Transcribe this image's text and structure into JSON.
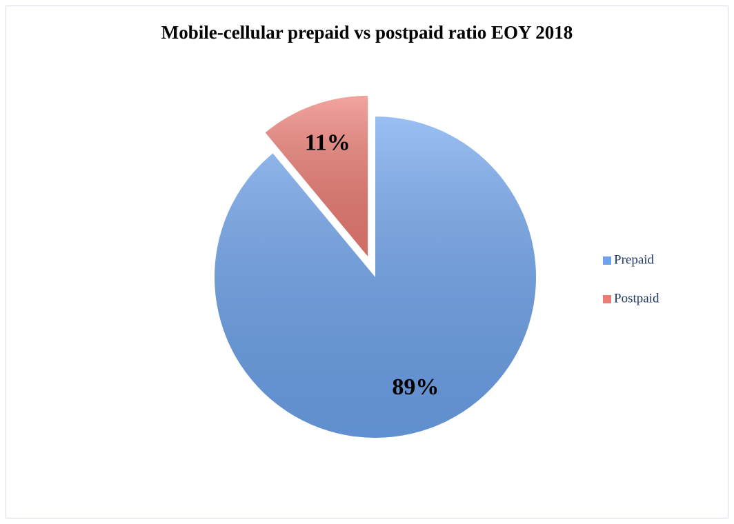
{
  "chart_data": {
    "type": "pie",
    "title": "Mobile-cellular prepaid vs postpaid ratio EOY 2018",
    "categories": [
      "Prepaid",
      "Postpaid"
    ],
    "values": [
      89,
      11
    ],
    "value_labels": [
      "89%",
      "11%"
    ],
    "colors": [
      "#6ea3ec",
      "#ec7d74"
    ],
    "exploded": [
      false,
      true
    ],
    "legend": "right"
  }
}
